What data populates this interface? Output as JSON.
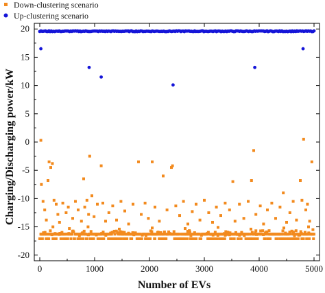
{
  "chart_data": {
    "type": "scatter",
    "xlabel": "Number of EVs",
    "ylabel": "Charging/Discharging power/kW",
    "xlim": [
      -100,
      5100
    ],
    "ylim": [
      -21,
      21
    ],
    "x_ticks": [
      "0",
      "1000",
      "2000",
      "3000",
      "4000",
      "5000"
    ],
    "x_tick_values": [
      0,
      1000,
      2000,
      3000,
      4000,
      5000
    ],
    "y_ticks": [
      "20",
      "15",
      "10",
      "5",
      "0",
      "-5",
      "-10",
      "-15",
      "-20"
    ],
    "y_tick_values": [
      20,
      15,
      10,
      5,
      0,
      -5,
      -10,
      -15,
      -20
    ],
    "grid": false,
    "legend_position": "top-left, outside plot",
    "series": [
      {
        "name": "Down-clustering scenario",
        "color": "#F28A1E",
        "marker": "square",
        "main_band": {
          "x_range": [
            0,
            5000
          ],
          "y": -16.3,
          "spread": 0.9
        },
        "points": [
          [
            20,
            0.3
          ],
          [
            30,
            -7.5
          ],
          [
            60,
            -10.5
          ],
          [
            90,
            -12.0
          ],
          [
            120,
            -13.8
          ],
          [
            150,
            -6.8
          ],
          [
            170,
            -3.5
          ],
          [
            200,
            -4.5
          ],
          [
            230,
            -3.8
          ],
          [
            260,
            -10.3
          ],
          [
            300,
            -11.0
          ],
          [
            330,
            -12.8
          ],
          [
            360,
            -14.2
          ],
          [
            420,
            -10.8
          ],
          [
            480,
            -12.5
          ],
          [
            520,
            -11.5
          ],
          [
            600,
            -13.5
          ],
          [
            650,
            -10.5
          ],
          [
            700,
            -12.0
          ],
          [
            760,
            -14.0
          ],
          [
            800,
            -6.5
          ],
          [
            820,
            -11.5
          ],
          [
            860,
            -10.3
          ],
          [
            890,
            -12.8
          ],
          [
            910,
            -2.5
          ],
          [
            950,
            -9.5
          ],
          [
            990,
            -13.2
          ],
          [
            1050,
            -11.0
          ],
          [
            1120,
            -4.2
          ],
          [
            1150,
            -10.8
          ],
          [
            1200,
            -14.0
          ],
          [
            1260,
            -12.5
          ],
          [
            1330,
            -11.3
          ],
          [
            1400,
            -13.8
          ],
          [
            1480,
            -10.5
          ],
          [
            1550,
            -12.2
          ],
          [
            1620,
            -14.5
          ],
          [
            1700,
            -11.0
          ],
          [
            1800,
            -3.5
          ],
          [
            1850,
            -12.8
          ],
          [
            1920,
            -10.8
          ],
          [
            1980,
            -13.5
          ],
          [
            2050,
            -3.5
          ],
          [
            2100,
            -11.5
          ],
          [
            2180,
            -14.0
          ],
          [
            2250,
            -6.0
          ],
          [
            2320,
            -12.0
          ],
          [
            2400,
            -4.5
          ],
          [
            2420,
            -4.2
          ],
          [
            2480,
            -11.3
          ],
          [
            2550,
            -13.0
          ],
          [
            2620,
            -10.5
          ],
          [
            2700,
            -14.5
          ],
          [
            2780,
            -12.3
          ],
          [
            2850,
            -11.0
          ],
          [
            2920,
            -13.8
          ],
          [
            3000,
            -10.3
          ],
          [
            3080,
            -12.5
          ],
          [
            3150,
            -14.2
          ],
          [
            3220,
            -11.5
          ],
          [
            3300,
            -13.0
          ],
          [
            3380,
            -10.8
          ],
          [
            3460,
            -12.0
          ],
          [
            3520,
            -7.0
          ],
          [
            3560,
            -14.0
          ],
          [
            3640,
            -11.0
          ],
          [
            3720,
            -13.5
          ],
          [
            3800,
            -10.5
          ],
          [
            3860,
            -6.8
          ],
          [
            3900,
            -1.5
          ],
          [
            3940,
            -12.8
          ],
          [
            4020,
            -11.3
          ],
          [
            4080,
            -14.5
          ],
          [
            4150,
            -12.0
          ],
          [
            4230,
            -10.8
          ],
          [
            4300,
            -13.5
          ],
          [
            4380,
            -11.5
          ],
          [
            4440,
            -9.0
          ],
          [
            4500,
            -14.2
          ],
          [
            4560,
            -12.5
          ],
          [
            4620,
            -10.5
          ],
          [
            4680,
            -13.8
          ],
          [
            4750,
            -6.8
          ],
          [
            4780,
            -10.3
          ],
          [
            4810,
            0.5
          ],
          [
            4850,
            -12.0
          ],
          [
            4880,
            -11.0
          ],
          [
            4920,
            -14.0
          ],
          [
            4960,
            -3.5
          ],
          [
            4980,
            -15.5
          ],
          [
            240,
            -15.0
          ],
          [
            540,
            -15.3
          ],
          [
            880,
            -15.0
          ],
          [
            1450,
            -15.4
          ],
          [
            2050,
            -15.2
          ],
          [
            2650,
            -15.3
          ],
          [
            3250,
            -15.1
          ],
          [
            3850,
            -15.4
          ],
          [
            4450,
            -15.2
          ],
          [
            4900,
            -15.0
          ]
        ]
      },
      {
        "name": "Up-clustering scenario",
        "color": "#1515D8",
        "marker": "circle",
        "main_band": {
          "x_range": [
            0,
            5000
          ],
          "y": 19.6,
          "spread": 0.15
        },
        "points": [
          [
            20,
            16.5
          ],
          [
            900,
            13.2
          ],
          [
            1120,
            11.5
          ],
          [
            2430,
            10.1
          ],
          [
            3920,
            13.2
          ],
          [
            4800,
            16.5
          ]
        ]
      }
    ]
  }
}
